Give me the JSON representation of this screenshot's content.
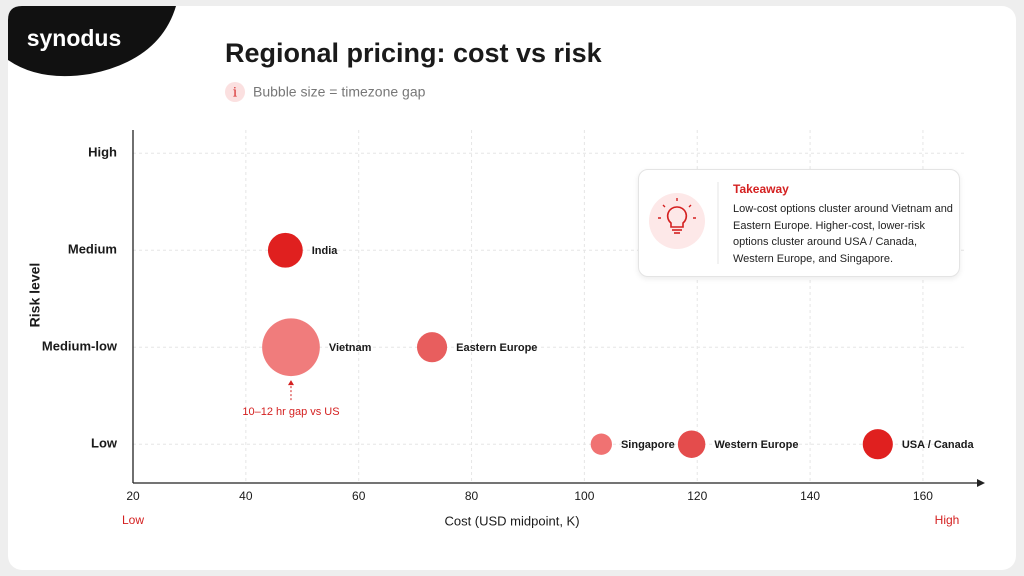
{
  "brand": "synodus",
  "chart_data": {
    "type": "bubble",
    "title": "Regional pricing: cost vs risk",
    "subtitle": "Bubble size = timezone gap",
    "x_label": "Cost (USD midpoint, K)",
    "y_label": "Risk level",
    "x_low_label": "Low",
    "x_high_label": "High",
    "xlim": [
      20,
      171
    ],
    "xticks": [
      20,
      40,
      60,
      80,
      100,
      120,
      140,
      160
    ],
    "ylim": [
      0.6,
      4.24
    ],
    "yticks": [
      {
        "value": 1,
        "label": "Low"
      },
      {
        "value": 2,
        "label": "Medium-low"
      },
      {
        "value": 3,
        "label": "Medium"
      },
      {
        "value": 4,
        "label": "High"
      }
    ],
    "grid": true,
    "points": [
      {
        "name": "India",
        "x": 47,
        "y": 3,
        "size": 4,
        "color": "#e0201f"
      },
      {
        "name": "Vietnam",
        "x": 48,
        "y": 2,
        "size": 11,
        "color": "#f07c7c"
      },
      {
        "name": "Eastern Europe",
        "x": 73,
        "y": 2,
        "size": 3,
        "color": "#e85e5e"
      },
      {
        "name": "Singapore",
        "x": 103,
        "y": 1,
        "size": 1.5,
        "color": "#f07272"
      },
      {
        "name": "Western Europe",
        "x": 119,
        "y": 1,
        "size": 2.5,
        "color": "#e44c4c"
      },
      {
        "name": "USA / Canada",
        "x": 152,
        "y": 1,
        "size": 3,
        "color": "#e0201f"
      }
    ],
    "annotation": "10–12 hr gap vs US",
    "takeaway": {
      "title": "Takeaway",
      "text": "Low-cost options cluster around Vietnam and Eastern Europe. Higher-cost, lower-risk options cluster around USA / Canada, Western Europe, and Singapore."
    }
  }
}
